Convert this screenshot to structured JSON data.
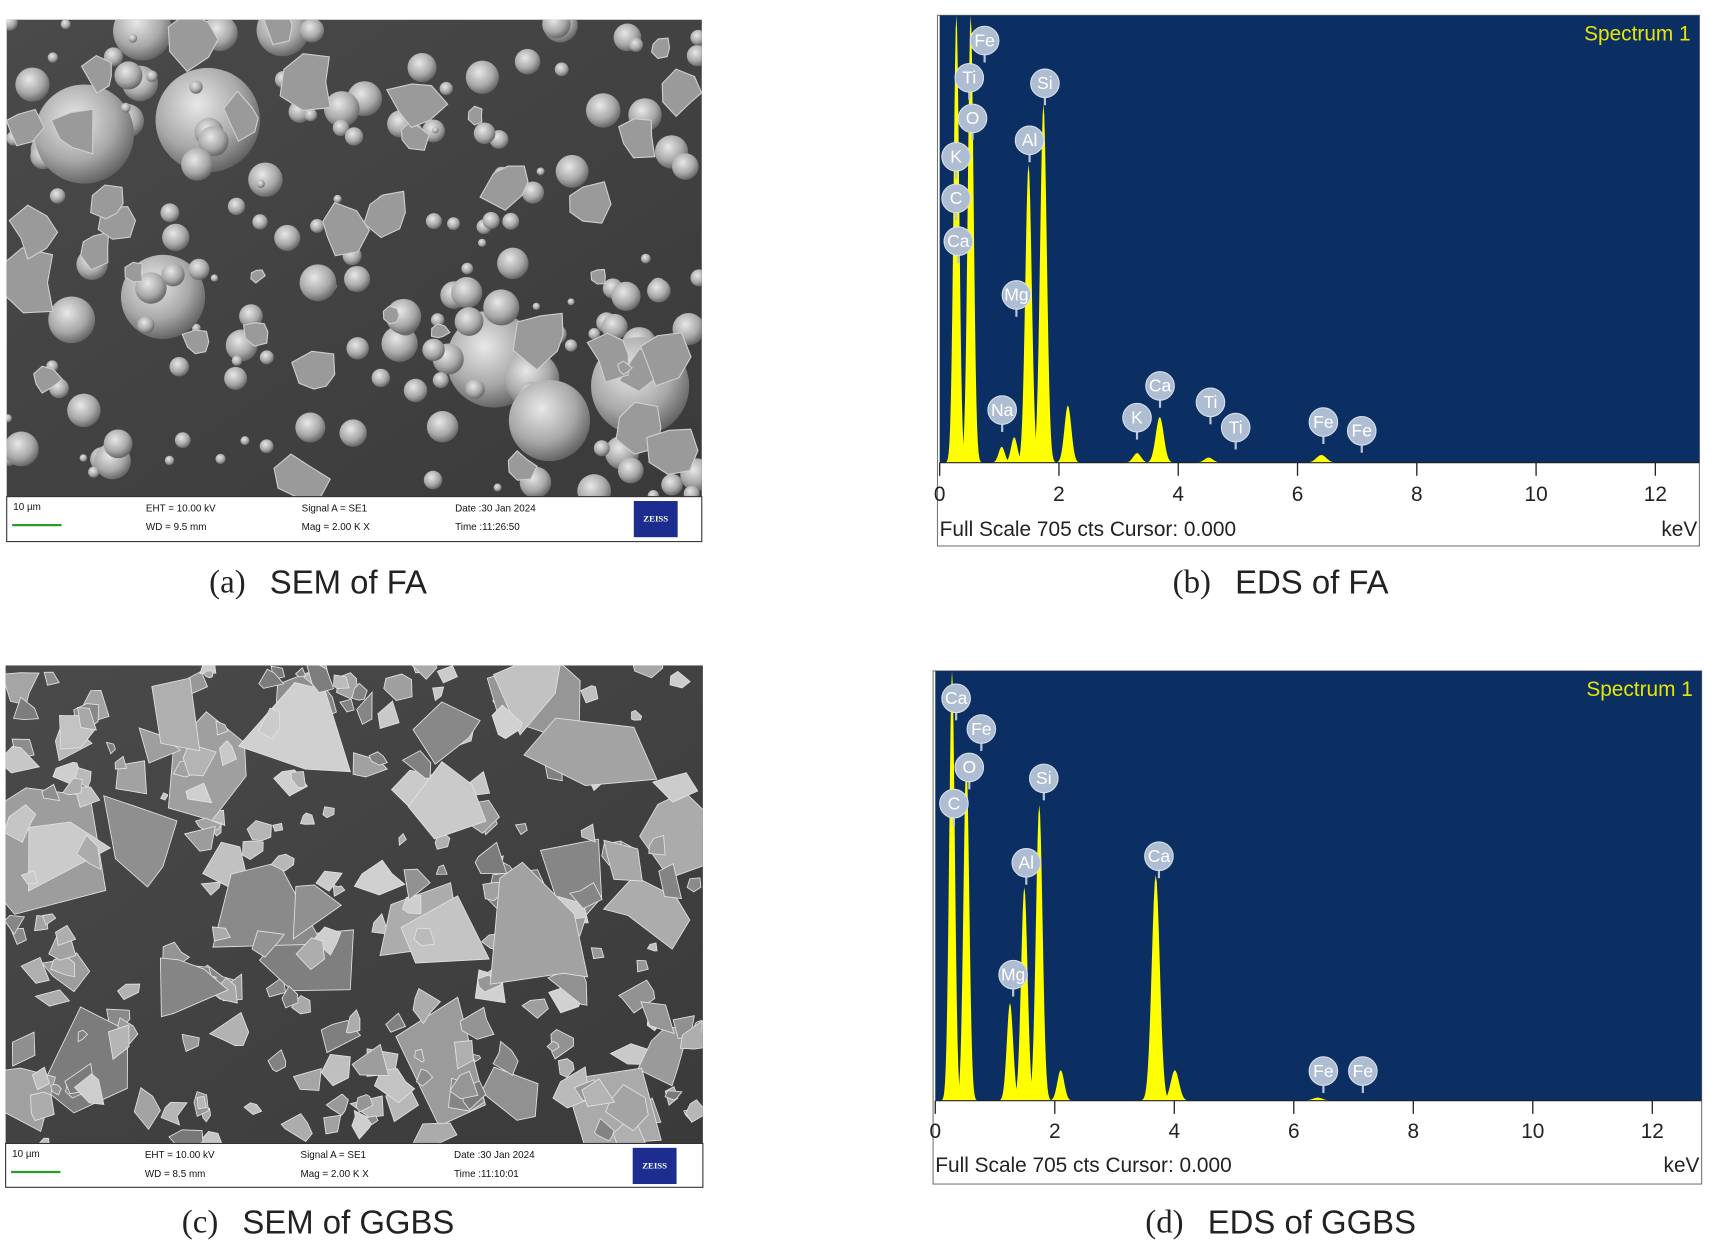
{
  "panels": [
    {
      "type": "sem",
      "caption": {
        "label": "(a)",
        "text": "SEM of FA"
      },
      "scale_bar": "10 µm",
      "info": [
        "EHT = 10.00 kV",
        "WD = 9.5 mm",
        "Signal A = SE1",
        "Mag = 2.00 K X",
        "Date :30 Jan 2024",
        "Time :11:26:50"
      ],
      "logo": "ZEISS"
    },
    {
      "type": "eds",
      "caption": {
        "label": "(b)",
        "text": "EDS of FA"
      },
      "title": "Spectrum 1",
      "footer": "Full Scale 705 cts Cursor: 0.000",
      "x_unit": "keV",
      "xlim": [
        0,
        12.74
      ],
      "xticks": [
        0,
        2,
        4,
        6,
        8,
        10,
        12
      ],
      "ylim": [
        0,
        705
      ],
      "peaks": [
        {
          "x": 0.28,
          "y": 705
        },
        {
          "x": 0.52,
          "y": 705
        },
        {
          "x": 1.04,
          "y": 25
        },
        {
          "x": 1.25,
          "y": 40
        },
        {
          "x": 1.49,
          "y": 470
        },
        {
          "x": 1.74,
          "y": 565
        },
        {
          "x": 2.15,
          "y": 90
        },
        {
          "x": 3.31,
          "y": 15
        },
        {
          "x": 3.69,
          "y": 72
        },
        {
          "x": 4.51,
          "y": 8
        },
        {
          "x": 6.4,
          "y": 12
        }
      ],
      "labels": [
        "Fe",
        "Ti",
        "O",
        "K",
        "C",
        "Ca",
        "Mg",
        "Si",
        "Al",
        "Na",
        "K",
        "Ca",
        "Ti",
        "Ti",
        "Fe",
        "Fe"
      ]
    },
    {
      "type": "sem",
      "caption": {
        "label": "(c)",
        "text": "SEM of GGBS"
      },
      "scale_bar": "10 µm",
      "info": [
        "EHT = 10.00 kV",
        "WD = 8.5 mm",
        "Signal A = SE1",
        "Mag = 2.00 K X",
        "Date :30 Jan 2024",
        "Time :11:10:01"
      ],
      "logo": "ZEISS"
    },
    {
      "type": "eds",
      "caption": {
        "label": "(d)",
        "text": "EDS of GGBS"
      },
      "title": "Spectrum 1",
      "footer": "Full Scale 705 cts Cursor: 0.000",
      "x_unit": "keV",
      "xlim": [
        0,
        12.72
      ],
      "xticks": [
        0,
        2,
        4,
        6,
        8,
        10,
        12
      ],
      "ylim": [
        0,
        705
      ],
      "peaks": [
        {
          "x": 0.28,
          "y": 705
        },
        {
          "x": 0.52,
          "y": 560
        },
        {
          "x": 1.25,
          "y": 160
        },
        {
          "x": 1.49,
          "y": 350
        },
        {
          "x": 1.74,
          "y": 485
        },
        {
          "x": 2.1,
          "y": 50
        },
        {
          "x": 3.69,
          "y": 370
        },
        {
          "x": 4.01,
          "y": 50
        },
        {
          "x": 6.4,
          "y": 5
        }
      ],
      "labels": [
        "Ca",
        "Fe",
        "O",
        "C",
        "Si",
        "Al",
        "Mg",
        "Ca",
        "Fe",
        "Fe"
      ]
    }
  ]
}
